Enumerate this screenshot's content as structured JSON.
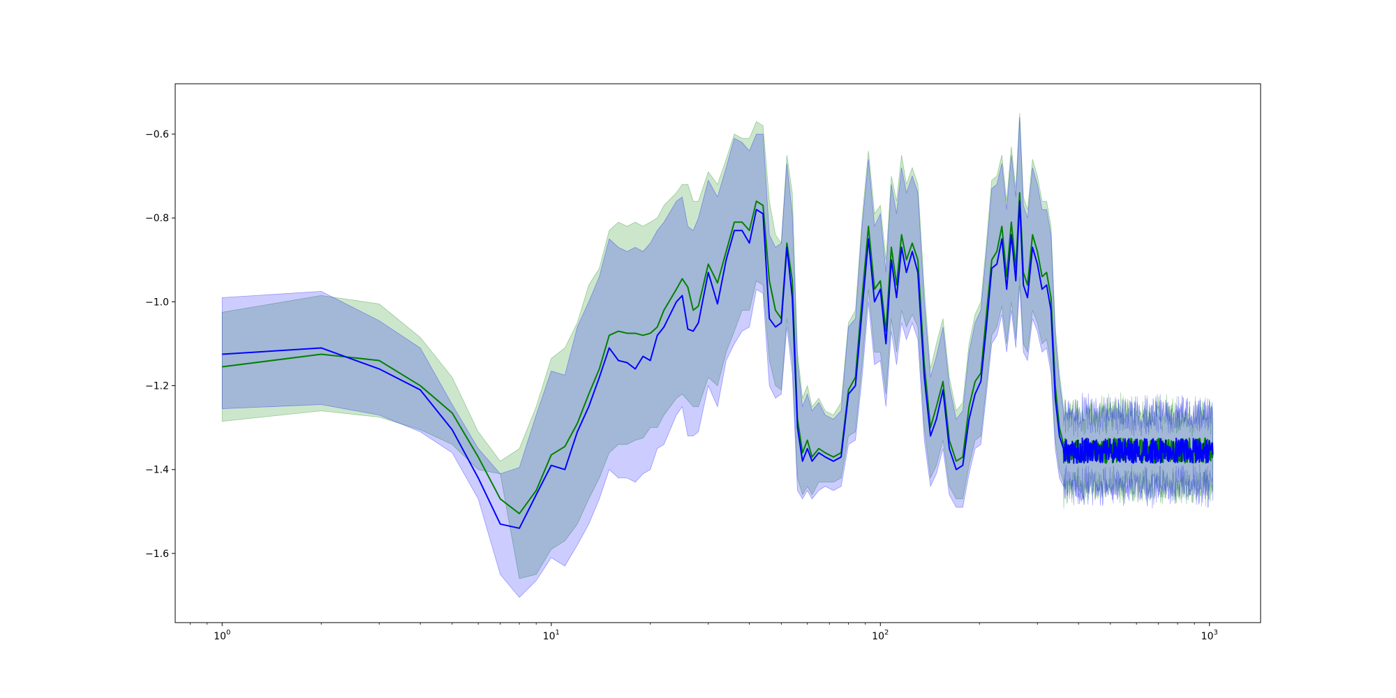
{
  "chart_data": {
    "type": "line",
    "title": "",
    "xlabel": "",
    "ylabel": "",
    "xscale": "log",
    "xlim": [
      0.72,
      1430
    ],
    "ylim": [
      -1.765,
      -0.48
    ],
    "grid": false,
    "legend": "none",
    "yticks": [
      {
        "value": -0.6,
        "label": "−0.6"
      },
      {
        "value": -0.8,
        "label": "−0.8"
      },
      {
        "value": -1.0,
        "label": "−1.0"
      },
      {
        "value": -1.2,
        "label": "−1.2"
      },
      {
        "value": -1.4,
        "label": "−1.4"
      },
      {
        "value": -1.6,
        "label": "−1.6"
      }
    ],
    "xticks": [
      {
        "value": 1,
        "base": "10",
        "exp": "0"
      },
      {
        "value": 10,
        "base": "10",
        "exp": "1"
      },
      {
        "value": 100,
        "base": "10",
        "exp": "2"
      },
      {
        "value": 1000,
        "base": "10",
        "exp": "3"
      }
    ],
    "noise_tail": {
      "x_start": 360,
      "x_end": 1024,
      "mean": -1.355,
      "amplitude": 0.03,
      "band_halfwidth": 0.085
    },
    "series": [
      {
        "color": "#008000",
        "band_color": "#008000",
        "band_opacity": 0.2,
        "points": [
          [
            1,
            -1.155,
            -1.285,
            -1.025
          ],
          [
            2,
            -1.125,
            -1.26,
            -0.985
          ],
          [
            3,
            -1.14,
            -1.275,
            -1.005
          ],
          [
            4,
            -1.2,
            -1.305,
            -1.085
          ],
          [
            5,
            -1.265,
            -1.34,
            -1.18
          ],
          [
            6,
            -1.37,
            -1.4,
            -1.31
          ],
          [
            7,
            -1.47,
            -1.41,
            -1.38
          ],
          [
            8,
            -1.505,
            -1.66,
            -1.35
          ],
          [
            9,
            -1.45,
            -1.65,
            -1.25
          ],
          [
            10,
            -1.365,
            -1.59,
            -1.135
          ],
          [
            11,
            -1.345,
            -1.57,
            -1.11
          ],
          [
            12,
            -1.29,
            -1.53,
            -1.05
          ],
          [
            13,
            -1.22,
            -1.47,
            -0.96
          ],
          [
            14,
            -1.16,
            -1.42,
            -0.92
          ],
          [
            15,
            -1.08,
            -1.36,
            -0.83
          ],
          [
            16,
            -1.07,
            -1.34,
            -0.81
          ],
          [
            17,
            -1.075,
            -1.34,
            -0.82
          ],
          [
            18,
            -1.075,
            -1.33,
            -0.81
          ],
          [
            19,
            -1.08,
            -1.325,
            -0.82
          ],
          [
            20,
            -1.075,
            -1.3,
            -0.81
          ],
          [
            21,
            -1.06,
            -1.3,
            -0.8
          ],
          [
            22,
            -1.02,
            -1.27,
            -0.77
          ],
          [
            24,
            -0.97,
            -1.23,
            -0.74
          ],
          [
            25,
            -0.945,
            -1.22,
            -0.72
          ],
          [
            26,
            -0.965,
            -1.235,
            -0.72
          ],
          [
            27,
            -1.02,
            -1.25,
            -0.76
          ],
          [
            28,
            -1.01,
            -1.25,
            -0.76
          ],
          [
            30,
            -0.91,
            -1.18,
            -0.69
          ],
          [
            32,
            -0.955,
            -1.2,
            -0.72
          ],
          [
            34,
            -0.88,
            -1.12,
            -0.66
          ],
          [
            36,
            -0.81,
            -1.07,
            -0.6
          ],
          [
            38,
            -0.81,
            -1.02,
            -0.61
          ],
          [
            40,
            -0.83,
            -1.02,
            -0.61
          ],
          [
            42,
            -0.76,
            -0.95,
            -0.57
          ],
          [
            44,
            -0.77,
            -0.96,
            -0.58
          ],
          [
            46,
            -0.95,
            -1.14,
            -0.76
          ],
          [
            48,
            -1.02,
            -1.2,
            -0.84
          ],
          [
            50,
            -1.04,
            -1.21,
            -0.86
          ],
          [
            52,
            -0.86,
            -1.04,
            -0.65
          ],
          [
            54,
            -0.95,
            -1.14,
            -0.74
          ],
          [
            56,
            -1.28,
            -1.42,
            -1.12
          ],
          [
            58,
            -1.36,
            -1.46,
            -1.23
          ],
          [
            60,
            -1.33,
            -1.44,
            -1.2
          ],
          [
            62,
            -1.37,
            -1.46,
            -1.25
          ],
          [
            65,
            -1.35,
            -1.43,
            -1.23
          ],
          [
            68,
            -1.36,
            -1.43,
            -1.26
          ],
          [
            72,
            -1.37,
            -1.43,
            -1.27
          ],
          [
            76,
            -1.36,
            -1.42,
            -1.24
          ],
          [
            80,
            -1.21,
            -1.32,
            -1.05
          ],
          [
            84,
            -1.18,
            -1.31,
            -1.02
          ],
          [
            88,
            -0.99,
            -1.15,
            -0.8
          ],
          [
            92,
            -0.82,
            -0.97,
            -0.64
          ],
          [
            96,
            -0.97,
            -1.12,
            -0.79
          ],
          [
            100,
            -0.95,
            -1.12,
            -0.77
          ],
          [
            104,
            -1.07,
            -1.22,
            -0.9
          ],
          [
            108,
            -0.87,
            -1.04,
            -0.7
          ],
          [
            112,
            -0.96,
            -1.12,
            -0.76
          ],
          [
            116,
            -0.84,
            -1.02,
            -0.65
          ],
          [
            120,
            -0.9,
            -1.06,
            -0.72
          ],
          [
            125,
            -0.86,
            -1.03,
            -0.68
          ],
          [
            130,
            -0.9,
            -1.06,
            -0.72
          ],
          [
            136,
            -1.15,
            -1.3,
            -0.97
          ],
          [
            142,
            -1.3,
            -1.42,
            -1.16
          ],
          [
            148,
            -1.25,
            -1.39,
            -1.1
          ],
          [
            155,
            -1.19,
            -1.33,
            -1.04
          ],
          [
            162,
            -1.33,
            -1.44,
            -1.18
          ],
          [
            170,
            -1.38,
            -1.47,
            -1.26
          ],
          [
            178,
            -1.37,
            -1.47,
            -1.24
          ],
          [
            186,
            -1.25,
            -1.39,
            -1.1
          ],
          [
            194,
            -1.19,
            -1.33,
            -1.03
          ],
          [
            202,
            -1.17,
            -1.32,
            -1.0
          ],
          [
            210,
            -1.03,
            -1.2,
            -0.86
          ],
          [
            218,
            -0.9,
            -1.08,
            -0.71
          ],
          [
            226,
            -0.88,
            -1.06,
            -0.7
          ],
          [
            234,
            -0.82,
            -1.01,
            -0.65
          ],
          [
            242,
            -0.94,
            -1.1,
            -0.76
          ],
          [
            250,
            -0.81,
            -1.0,
            -0.63
          ],
          [
            258,
            -0.92,
            -1.09,
            -0.73
          ],
          [
            265,
            -0.74,
            -0.94,
            -0.55
          ],
          [
            272,
            -0.93,
            -1.1,
            -0.75
          ],
          [
            280,
            -0.96,
            -1.12,
            -0.78
          ],
          [
            290,
            -0.84,
            -1.02,
            -0.66
          ],
          [
            300,
            -0.88,
            -1.05,
            -0.7
          ],
          [
            310,
            -0.94,
            -1.1,
            -0.76
          ],
          [
            320,
            -0.93,
            -1.09,
            -0.76
          ],
          [
            330,
            -0.99,
            -1.15,
            -0.82
          ],
          [
            340,
            -1.2,
            -1.33,
            -1.06
          ],
          [
            350,
            -1.3,
            -1.4,
            -1.17
          ],
          [
            360,
            -1.34,
            -1.43,
            -1.25
          ]
        ]
      },
      {
        "color": "#0000ff",
        "band_color": "#0000ff",
        "band_opacity": 0.2,
        "points": [
          [
            1,
            -1.125,
            -1.255,
            -0.99
          ],
          [
            2,
            -1.11,
            -1.245,
            -0.975
          ],
          [
            3,
            -1.16,
            -1.27,
            -1.045
          ],
          [
            4,
            -1.21,
            -1.31,
            -1.11
          ],
          [
            5,
            -1.305,
            -1.36,
            -1.245
          ],
          [
            6,
            -1.42,
            -1.47,
            -1.35
          ],
          [
            7,
            -1.53,
            -1.65,
            -1.41
          ],
          [
            8,
            -1.54,
            -1.705,
            -1.395
          ],
          [
            9,
            -1.46,
            -1.665,
            -1.27
          ],
          [
            10,
            -1.39,
            -1.61,
            -1.165
          ],
          [
            11,
            -1.4,
            -1.63,
            -1.175
          ],
          [
            12,
            -1.31,
            -1.58,
            -1.06
          ],
          [
            13,
            -1.25,
            -1.53,
            -1.0
          ],
          [
            14,
            -1.18,
            -1.47,
            -0.94
          ],
          [
            15,
            -1.11,
            -1.4,
            -0.85
          ],
          [
            16,
            -1.14,
            -1.42,
            -0.87
          ],
          [
            17,
            -1.145,
            -1.42,
            -0.88
          ],
          [
            18,
            -1.16,
            -1.43,
            -0.87
          ],
          [
            19,
            -1.13,
            -1.41,
            -0.88
          ],
          [
            20,
            -1.14,
            -1.4,
            -0.86
          ],
          [
            21,
            -1.08,
            -1.35,
            -0.83
          ],
          [
            22,
            -1.06,
            -1.34,
            -0.81
          ],
          [
            24,
            -1.0,
            -1.27,
            -0.76
          ],
          [
            25,
            -0.985,
            -1.25,
            -0.75
          ],
          [
            26,
            -1.065,
            -1.32,
            -0.82
          ],
          [
            27,
            -1.07,
            -1.32,
            -0.83
          ],
          [
            28,
            -1.05,
            -1.31,
            -0.8
          ],
          [
            30,
            -0.93,
            -1.2,
            -0.71
          ],
          [
            32,
            -1.005,
            -1.25,
            -0.75
          ],
          [
            34,
            -0.9,
            -1.14,
            -0.68
          ],
          [
            36,
            -0.83,
            -1.1,
            -0.61
          ],
          [
            38,
            -0.83,
            -1.07,
            -0.62
          ],
          [
            40,
            -0.86,
            -1.06,
            -0.64
          ],
          [
            42,
            -0.78,
            -0.97,
            -0.6
          ],
          [
            44,
            -0.79,
            -0.98,
            -0.6
          ],
          [
            46,
            -1.04,
            -1.2,
            -0.84
          ],
          [
            48,
            -1.06,
            -1.23,
            -0.87
          ],
          [
            50,
            -1.05,
            -1.22,
            -0.86
          ],
          [
            52,
            -0.87,
            -1.06,
            -0.67
          ],
          [
            54,
            -0.99,
            -1.17,
            -0.79
          ],
          [
            56,
            -1.3,
            -1.45,
            -1.14
          ],
          [
            58,
            -1.38,
            -1.47,
            -1.25
          ],
          [
            60,
            -1.35,
            -1.45,
            -1.22
          ],
          [
            62,
            -1.38,
            -1.47,
            -1.26
          ],
          [
            65,
            -1.36,
            -1.45,
            -1.24
          ],
          [
            68,
            -1.37,
            -1.44,
            -1.27
          ],
          [
            72,
            -1.38,
            -1.45,
            -1.28
          ],
          [
            76,
            -1.37,
            -1.44,
            -1.26
          ],
          [
            80,
            -1.22,
            -1.34,
            -1.06
          ],
          [
            84,
            -1.2,
            -1.33,
            -1.04
          ],
          [
            88,
            -1.02,
            -1.18,
            -0.82
          ],
          [
            92,
            -0.85,
            -1.0,
            -0.66
          ],
          [
            96,
            -1.0,
            -1.15,
            -0.82
          ],
          [
            100,
            -0.97,
            -1.14,
            -0.79
          ],
          [
            104,
            -1.1,
            -1.25,
            -0.93
          ],
          [
            108,
            -0.9,
            -1.07,
            -0.72
          ],
          [
            112,
            -0.99,
            -1.15,
            -0.79
          ],
          [
            116,
            -0.87,
            -1.05,
            -0.68
          ],
          [
            120,
            -0.93,
            -1.09,
            -0.74
          ],
          [
            125,
            -0.88,
            -1.05,
            -0.7
          ],
          [
            130,
            -0.93,
            -1.09,
            -0.74
          ],
          [
            136,
            -1.18,
            -1.33,
            -1.0
          ],
          [
            142,
            -1.32,
            -1.44,
            -1.18
          ],
          [
            148,
            -1.28,
            -1.41,
            -1.13
          ],
          [
            155,
            -1.21,
            -1.35,
            -1.06
          ],
          [
            162,
            -1.35,
            -1.46,
            -1.2
          ],
          [
            170,
            -1.4,
            -1.49,
            -1.28
          ],
          [
            178,
            -1.39,
            -1.49,
            -1.26
          ],
          [
            186,
            -1.28,
            -1.41,
            -1.12
          ],
          [
            194,
            -1.22,
            -1.35,
            -1.05
          ],
          [
            202,
            -1.19,
            -1.34,
            -1.02
          ],
          [
            210,
            -1.06,
            -1.22,
            -0.88
          ],
          [
            218,
            -0.92,
            -1.1,
            -0.73
          ],
          [
            226,
            -0.91,
            -1.08,
            -0.72
          ],
          [
            234,
            -0.85,
            -1.03,
            -0.67
          ],
          [
            242,
            -0.97,
            -1.12,
            -0.78
          ],
          [
            250,
            -0.84,
            -1.02,
            -0.65
          ],
          [
            258,
            -0.95,
            -1.11,
            -0.75
          ],
          [
            265,
            -0.76,
            -0.96,
            -0.56
          ],
          [
            272,
            -0.96,
            -1.12,
            -0.77
          ],
          [
            280,
            -0.99,
            -1.14,
            -0.8
          ],
          [
            290,
            -0.87,
            -1.04,
            -0.68
          ],
          [
            300,
            -0.91,
            -1.07,
            -0.72
          ],
          [
            310,
            -0.97,
            -1.12,
            -0.78
          ],
          [
            320,
            -0.96,
            -1.11,
            -0.78
          ],
          [
            330,
            -1.02,
            -1.17,
            -0.84
          ],
          [
            340,
            -1.23,
            -1.35,
            -1.08
          ],
          [
            350,
            -1.32,
            -1.42,
            -1.19
          ],
          [
            360,
            -1.35,
            -1.44,
            -1.26
          ]
        ]
      }
    ]
  }
}
